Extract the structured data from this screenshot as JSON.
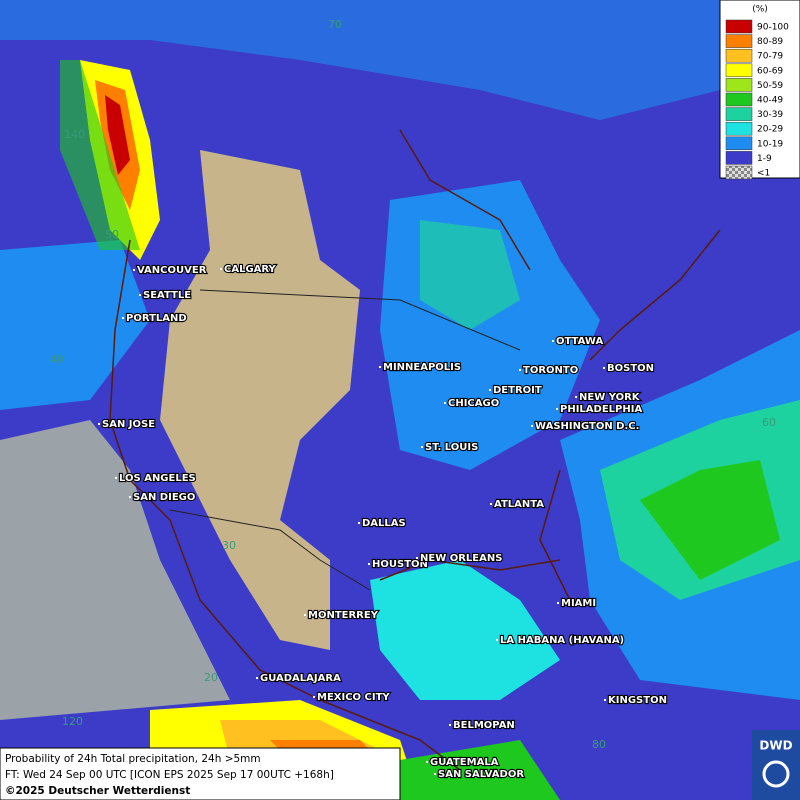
{
  "legend": {
    "unit": "(%)",
    "classes": [
      {
        "label": "90-100",
        "color": "#c80000"
      },
      {
        "label": "80-89",
        "color": "#ff7f00"
      },
      {
        "label": "70-79",
        "color": "#ffc020"
      },
      {
        "label": "60-69",
        "color": "#ffff00"
      },
      {
        "label": "50-59",
        "color": "#9ee61a"
      },
      {
        "label": "40-49",
        "color": "#1ec81e"
      },
      {
        "label": "30-39",
        "color": "#1ed2a0"
      },
      {
        "label": "20-29",
        "color": "#1ee1e1"
      },
      {
        "label": "10-19",
        "color": "#1e8cf0"
      },
      {
        "label": "1-9",
        "color": "#3c3cc8"
      },
      {
        "label": "<1",
        "color": "#aaaaaa"
      }
    ]
  },
  "cities": [
    "VANCOUVER",
    "CALGARY",
    "SEATTLE",
    "PORTLAND",
    "MINNEAPOLIS",
    "OTTAWA",
    "TORONTO",
    "BOSTON",
    "DETROIT",
    "NEW YORK",
    "CHICAGO",
    "PHILADELPHIA",
    "WASHINGTON D.C.",
    "SAN JOSE",
    "ST. LOUIS",
    "LOS ANGELES",
    "SAN DIEGO",
    "ATLANTA",
    "DALLAS",
    "HOUSTON",
    "NEW ORLEANS",
    "MIAMI",
    "MONTERREY",
    "LA HABANA (HAVANA)",
    "GUADALAJARA",
    "MEXICO CITY",
    "KINGSTON",
    "BELMOPAN",
    "GUATEMALA",
    "SAN SALVADOR"
  ],
  "graticule_labels": [
    "70",
    "140",
    "50",
    "40",
    "60",
    "30",
    "20",
    "120",
    "80"
  ],
  "footer": {
    "line1": "Probability of 24h Total precipitation, 24h >5mm",
    "line2": "FT: Wed 24 Sep 00 UTC [ICON EPS 2025 Sep 17 00UTC +168h]",
    "copyright": "©2025 Deutscher Wetterdienst"
  },
  "logo": "DWD"
}
